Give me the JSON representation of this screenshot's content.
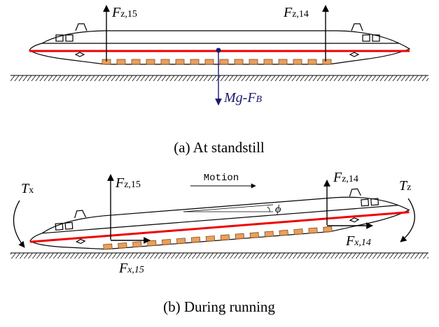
{
  "panel_a": {
    "caption": "(a) At standstill",
    "forces": [
      {
        "symbol": "F",
        "subscript": "z,15"
      },
      {
        "symbol": "F",
        "subscript": "z,14"
      },
      {
        "symbol": "Mg-F",
        "subscript": "B"
      }
    ]
  },
  "panel_b": {
    "caption": "(b) During running",
    "motion": "Motion",
    "angle": "ϕ",
    "forces": [
      {
        "symbol": "T",
        "subscript": "x"
      },
      {
        "symbol": "T",
        "subscript": "z"
      },
      {
        "symbol": "F",
        "subscript": "z,15"
      },
      {
        "symbol": "F",
        "subscript": "z,14"
      },
      {
        "symbol": "F",
        "subscript": "x,14"
      },
      {
        "symbol": "F",
        "subscript": "x,15"
      }
    ]
  }
}
